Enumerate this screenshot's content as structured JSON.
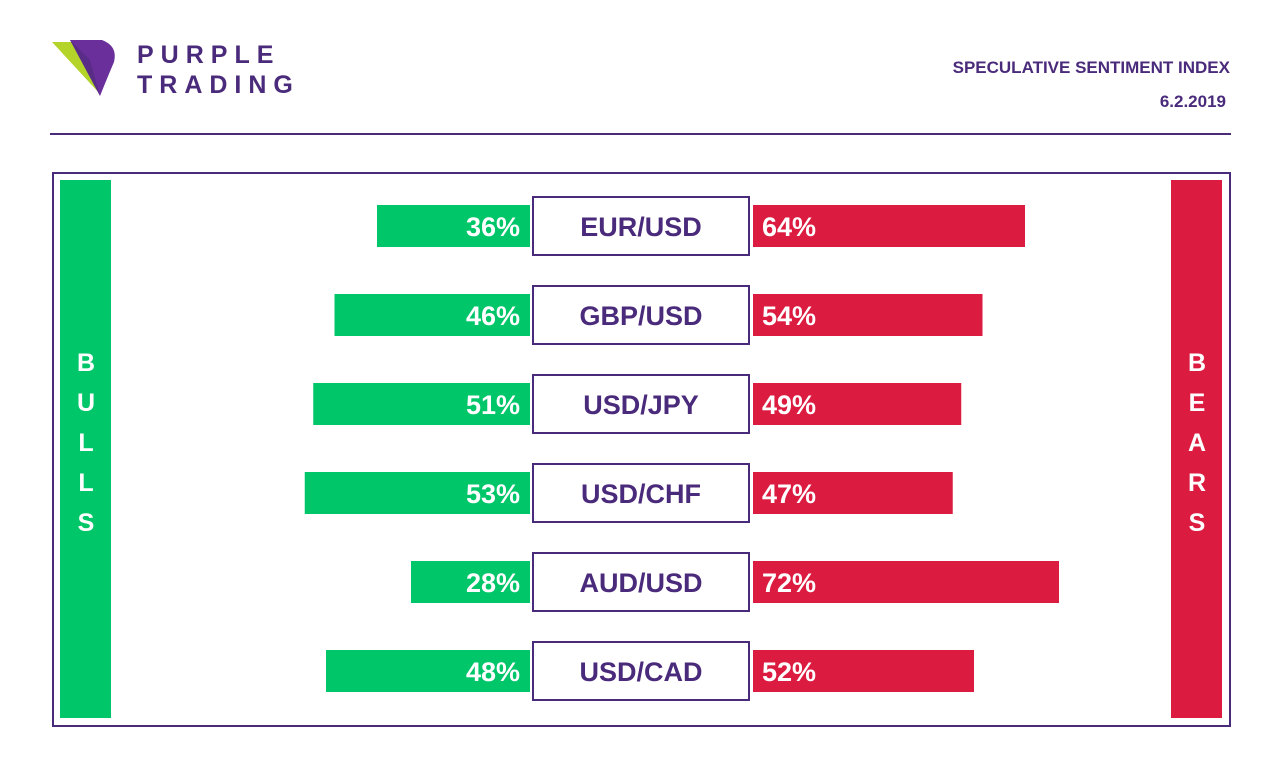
{
  "brand": {
    "line1": "PURPLE",
    "line2": "TRADING"
  },
  "header": {
    "title": "SPECULATIVE SENTIMENT INDEX",
    "date": "6.2.2019"
  },
  "colors": {
    "purple": "#4a2a7a",
    "bull": "#00c66a",
    "bear": "#dc1b40"
  },
  "chart_data": {
    "type": "bar",
    "legend": {
      "left": "BULLS",
      "right": "BEARS"
    },
    "categories": [
      "EUR/USD",
      "GBP/USD",
      "USD/JPY",
      "USD/CHF",
      "AUD/USD",
      "USD/CAD"
    ],
    "series": [
      {
        "name": "BULLS",
        "values": [
          36,
          46,
          51,
          53,
          28,
          48
        ],
        "labels": [
          "36%",
          "46%",
          "51%",
          "53%",
          "28%",
          "48%"
        ]
      },
      {
        "name": "BEARS",
        "values": [
          64,
          54,
          49,
          47,
          72,
          52
        ],
        "labels": [
          "64%",
          "54%",
          "49%",
          "47%",
          "72%",
          "52%"
        ]
      }
    ]
  }
}
